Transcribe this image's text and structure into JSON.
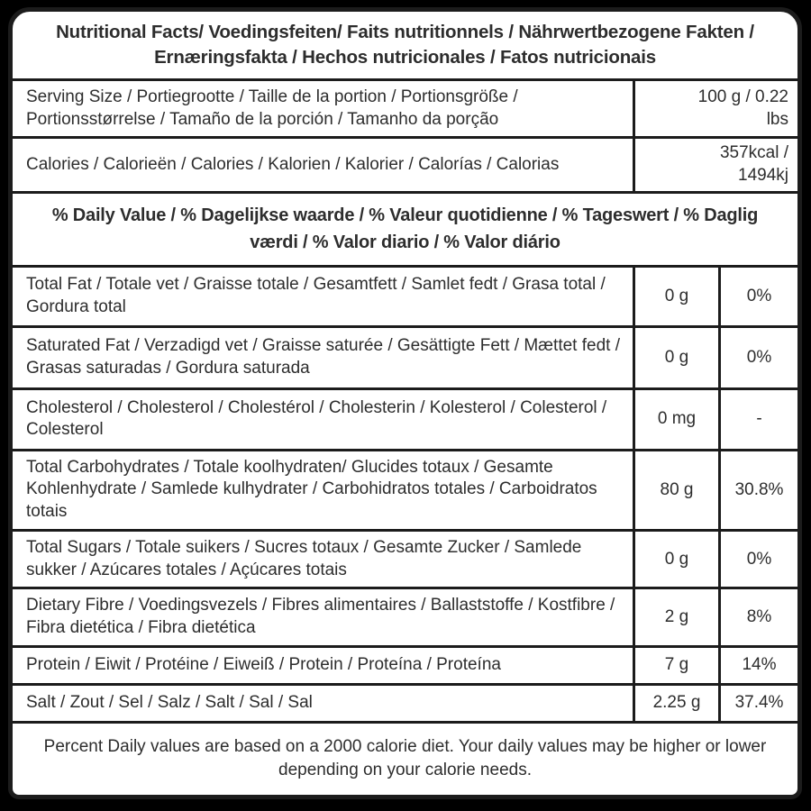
{
  "title": "Nutritional Facts/ Voedingsfeiten/ Faits nutritionnels / Nährwertbezogene Fakten / Ernæringsfakta / Hechos nutricionales / Fatos nutricionais",
  "serving": {
    "label": "Serving Size / Portiegrootte / Taille de la portion / Portionsgröße / Portionsstørrelse / Tamaño de la porción / Tamanho da porção",
    "value": "100 g / 0.22 lbs"
  },
  "calories": {
    "label": "Calories / Calorieën / Calories / Kalorien / Kalorier / Calorías / Calorias",
    "value": "357kcal / 1494kj"
  },
  "daily_value_header": "% Daily Value / % Dagelijkse waarde / % Valeur quotidienne / % Tageswert / % Daglig værdi / % Valor diario / % Valor diário",
  "rows": [
    {
      "label": "Total Fat / Totale vet / Graisse totale / Gesamtfett / Samlet fedt / Grasa total / Gordura total",
      "amount": "0 g",
      "daily": "0%"
    },
    {
      "label": "Saturated Fat / Verzadigd vet / Graisse saturée / Gesättigte Fett / Mættet fedt / Grasas saturadas / Gordura saturada",
      "amount": "0 g",
      "daily": "0%"
    },
    {
      "label": "Cholesterol / Cholesterol / Cholestérol / Cholesterin / Kolesterol / Colesterol / Colesterol",
      "amount": "0 mg",
      "daily": "-"
    },
    {
      "label": "Total Carbohydrates / Totale koolhydraten/ Glucides totaux / Gesamte Kohlenhydrate / Samlede kulhydrater / Carbohidratos totales / Carboidratos totais",
      "amount": "80 g",
      "daily": "30.8%"
    },
    {
      "label": "Total Sugars / Totale suikers / Sucres totaux / Gesamte Zucker / Samlede sukker / Azúcares totales / Açúcares totais",
      "amount": "0 g",
      "daily": "0%"
    },
    {
      "label": "Dietary Fibre / Voedingsvezels / Fibres alimentaires / Ballaststoffe / Kostfibre / Fibra dietética / Fibra dietética",
      "amount": "2 g",
      "daily": "8%"
    },
    {
      "label": "Protein / Eiwit / Protéine / Eiweiß / Protein / Proteína / Proteína",
      "amount": "7 g",
      "daily": "14%"
    },
    {
      "label": "Salt / Zout / Sel / Salz / Salt / Sal / Sal",
      "amount": "2.25 g",
      "daily": "37.4%"
    }
  ],
  "footer": "Percent Daily values are based on a 2000 calorie diet. Your daily values may be higher or lower depending on your calorie needs.",
  "colors": {
    "border": "#1c1c1c",
    "background": "#ffffff",
    "page": "#000000",
    "text": "#2d2d2d"
  }
}
